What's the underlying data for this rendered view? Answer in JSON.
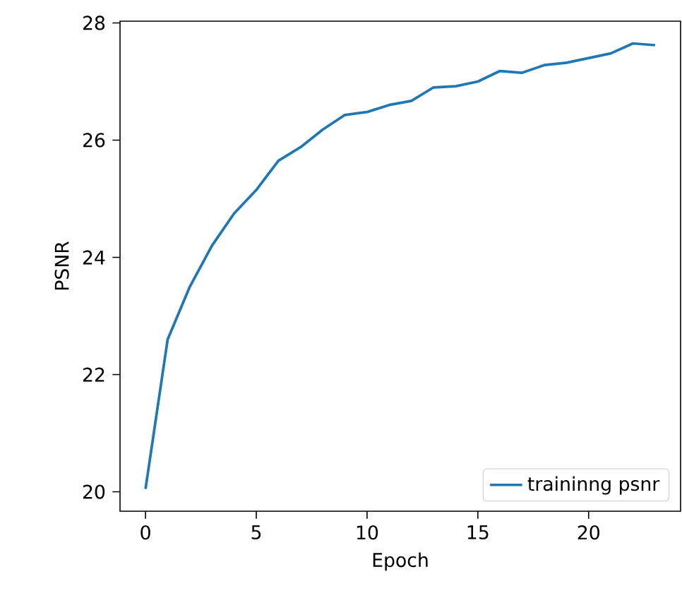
{
  "chart_data": {
    "type": "line",
    "xlabel": "Epoch",
    "ylabel": "PSNR",
    "x": [
      0,
      1,
      2,
      3,
      4,
      5,
      6,
      7,
      8,
      9,
      10,
      11,
      12,
      13,
      14,
      15,
      16,
      17,
      18,
      19,
      20,
      21,
      22,
      23
    ],
    "series": [
      {
        "name": "traininng psnr",
        "color": "#1f77b4",
        "values": [
          20.05,
          22.6,
          23.5,
          24.2,
          24.75,
          25.15,
          25.65,
          25.88,
          26.18,
          26.43,
          26.48,
          26.6,
          26.67,
          26.9,
          26.92,
          27.0,
          27.18,
          27.15,
          27.28,
          27.32,
          27.4,
          27.48,
          27.65,
          27.62
        ]
      }
    ],
    "xlim": [
      -1.15,
      24.15
    ],
    "ylim": [
      19.67,
      28.03
    ],
    "xticks": [
      0,
      5,
      10,
      15,
      20
    ],
    "yticks": [
      20,
      22,
      24,
      26,
      28
    ],
    "legend": "bottom right",
    "grid": false,
    "marker": "none",
    "line_style": "solid"
  }
}
